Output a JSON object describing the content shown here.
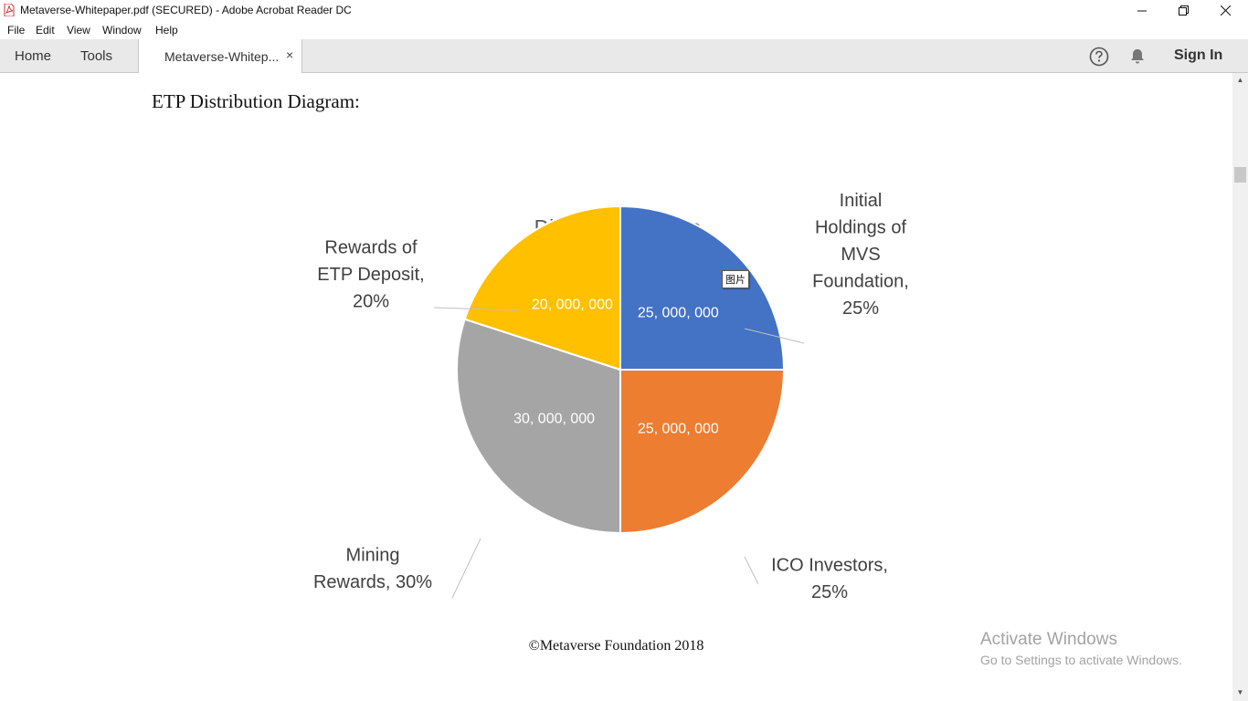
{
  "window": {
    "title": "Metaverse-Whitepaper.pdf (SECURED) - Adobe Acrobat Reader DC",
    "controls": [
      "minimize-icon",
      "restore-icon",
      "close-icon"
    ]
  },
  "menu": {
    "items": [
      "File",
      "Edit",
      "View",
      "Window",
      "Help"
    ]
  },
  "toolbar": {
    "home_label": "Home",
    "tools_label": "Tools",
    "doc_tab_label": "Metaverse-Whitep...",
    "doc_tab_close": "×",
    "sign_in_label": "Sign In",
    "icons": [
      "help-icon",
      "bell-icon"
    ]
  },
  "document": {
    "heading": "ETP Distribution Diagram:",
    "footer": "©Metaverse Foundation 2018",
    "tooltip": "图片"
  },
  "chart_data": {
    "type": "pie",
    "title": "Distribution  Share",
    "slices": [
      {
        "label_lines": [
          "Initial",
          "Holdings of",
          "MVS",
          "Foundation,",
          "25%"
        ],
        "value": 25000000,
        "value_label": "25, 000, 000",
        "percent": 25,
        "color": "#4472c4"
      },
      {
        "label_lines": [
          "ICO Investors,",
          "25%"
        ],
        "value": 25000000,
        "value_label": "25, 000, 000",
        "percent": 25,
        "color": "#ed7d31"
      },
      {
        "label_lines": [
          "Mining",
          "Rewards, 30%"
        ],
        "value": 30000000,
        "value_label": "30, 000, 000",
        "percent": 30,
        "color": "#a5a5a5"
      },
      {
        "label_lines": [
          "Rewards of",
          "ETP Deposit,",
          "20%"
        ],
        "value": 20000000,
        "value_label": "20, 000, 000",
        "percent": 20,
        "color": "#ffc000"
      }
    ]
  },
  "watermark": {
    "line1": "Activate Windows",
    "line2": "Go to Settings to activate Windows."
  }
}
